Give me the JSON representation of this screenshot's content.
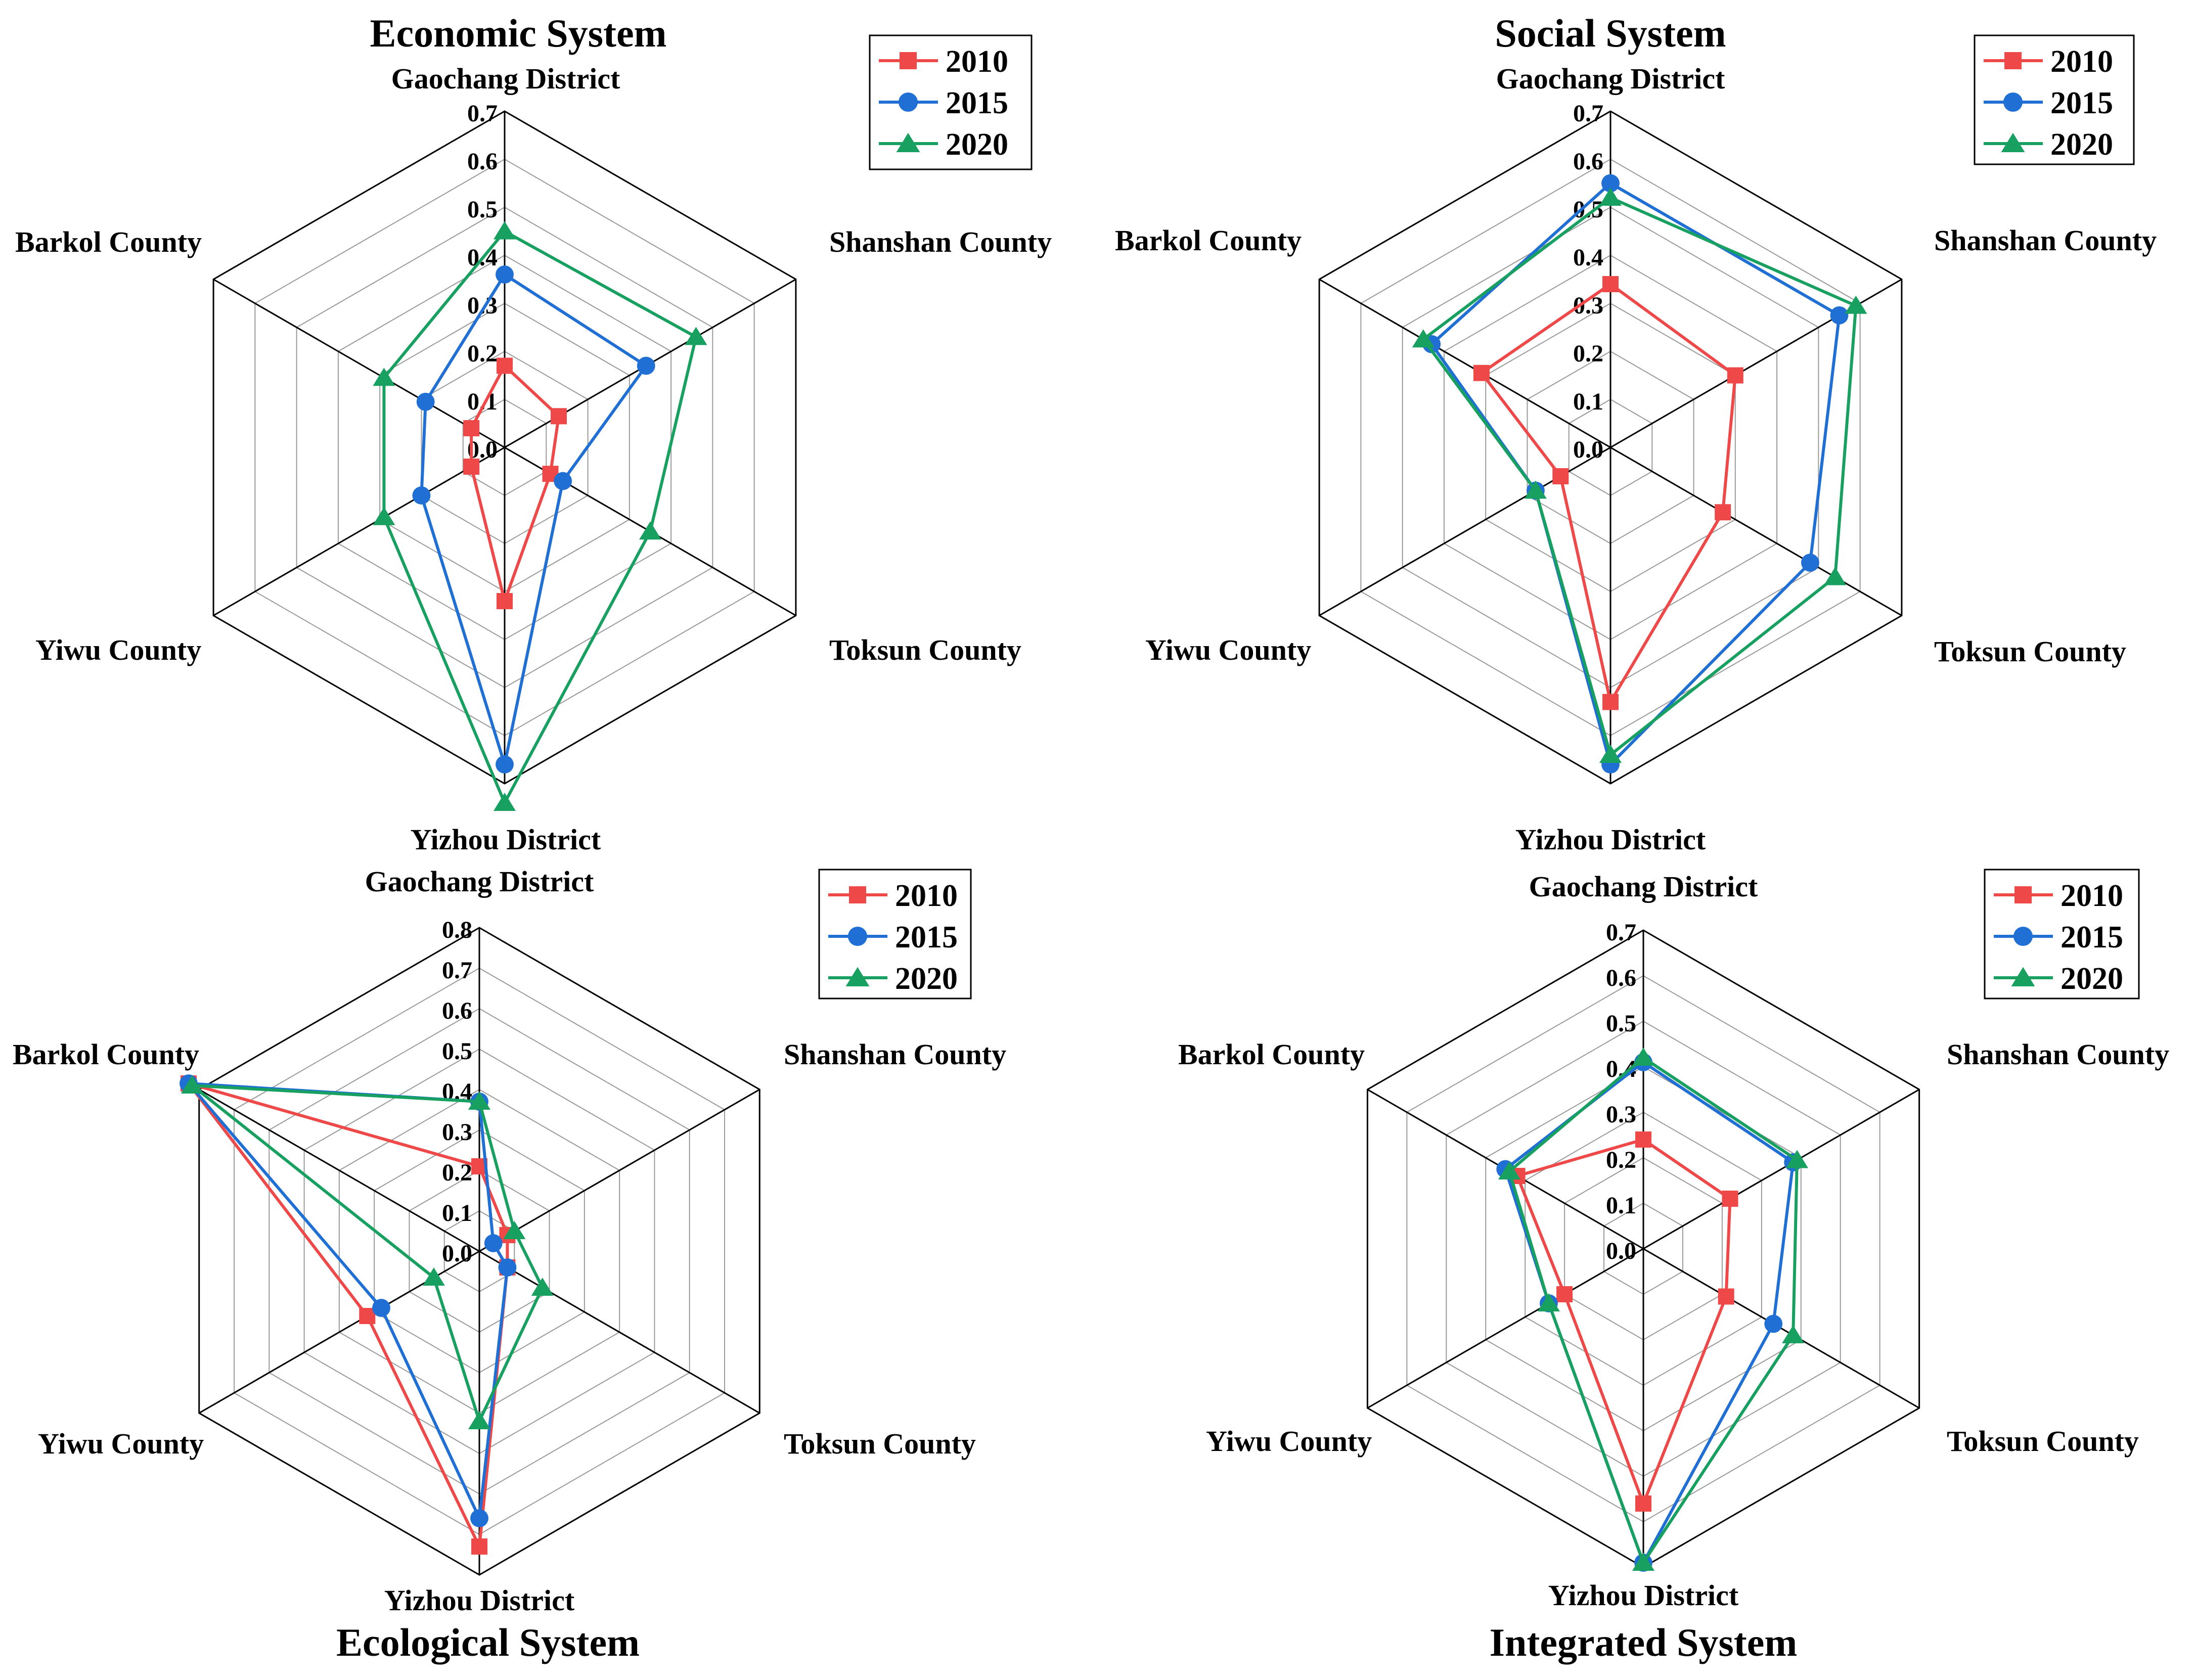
{
  "chart_data": [
    {
      "type": "radar",
      "title": "Economic System",
      "title_position": "top",
      "axes": [
        "Gaochang District",
        "Shanshan County",
        "Toksun County",
        "Yizhou District",
        "Yiwu County",
        "Barkol County"
      ],
      "rticks": [
        "0.0",
        "0.1",
        "0.2",
        "0.3",
        "0.4",
        "0.5",
        "0.6",
        "0.7"
      ],
      "rlim": [
        0,
        0.7
      ],
      "legend_position": "top-right",
      "series": [
        {
          "name": "2010",
          "values": [
            0.17,
            0.13,
            0.11,
            0.32,
            0.08,
            0.08
          ]
        },
        {
          "name": "2015",
          "values": [
            0.36,
            0.34,
            0.14,
            0.66,
            0.2,
            0.19
          ]
        },
        {
          "name": "2020",
          "values": [
            0.45,
            0.46,
            0.35,
            0.74,
            0.29,
            0.29
          ]
        }
      ]
    },
    {
      "type": "radar",
      "title": "Social System",
      "title_position": "top",
      "axes": [
        "Gaochang District",
        "Shanshan County",
        "Toksun County",
        "Yizhou District",
        "Yiwu County",
        "Barkol County"
      ],
      "rticks": [
        "0.0",
        "0.1",
        "0.2",
        "0.3",
        "0.4",
        "0.5",
        "0.6",
        "0.7"
      ],
      "rlim": [
        0,
        0.7
      ],
      "legend_position": "top-right",
      "series": [
        {
          "name": "2010",
          "values": [
            0.34,
            0.3,
            0.27,
            0.53,
            0.12,
            0.31
          ]
        },
        {
          "name": "2015",
          "values": [
            0.55,
            0.55,
            0.48,
            0.66,
            0.18,
            0.43
          ]
        },
        {
          "name": "2020",
          "values": [
            0.52,
            0.59,
            0.54,
            0.64,
            0.18,
            0.45
          ]
        }
      ]
    },
    {
      "type": "radar",
      "title": "Ecological System",
      "title_position": "bottom",
      "axes": [
        "Gaochang District",
        "Shanshan County",
        "Toksun County",
        "Yizhou District",
        "Yiwu County",
        "Barkol County"
      ],
      "rticks": [
        "0.0",
        "0.1",
        "0.2",
        "0.3",
        "0.4",
        "0.5",
        "0.6",
        "0.7",
        "0.8"
      ],
      "rlim": [
        0,
        0.8
      ],
      "legend_position": "top-right",
      "series": [
        {
          "name": "2010",
          "values": [
            0.21,
            0.08,
            0.08,
            0.73,
            0.32,
            0.83
          ]
        },
        {
          "name": "2015",
          "values": [
            0.37,
            0.04,
            0.08,
            0.66,
            0.28,
            0.83
          ]
        },
        {
          "name": "2020",
          "values": [
            0.37,
            0.1,
            0.18,
            0.42,
            0.13,
            0.82
          ]
        }
      ]
    },
    {
      "type": "radar",
      "title": "Integrated System",
      "title_position": "bottom",
      "axes": [
        "Gaochang District",
        "Shanshan County",
        "Toksun County",
        "Yizhou District",
        "Yiwu County",
        "Barkol County"
      ],
      "rticks": [
        "0.0",
        "0.1",
        "0.2",
        "0.3",
        "0.4",
        "0.5",
        "0.6",
        "0.7"
      ],
      "rlim": [
        0,
        0.7
      ],
      "legend_position": "top-right",
      "series": [
        {
          "name": "2010",
          "values": [
            0.24,
            0.22,
            0.21,
            0.56,
            0.2,
            0.32
          ]
        },
        {
          "name": "2015",
          "values": [
            0.41,
            0.38,
            0.33,
            0.69,
            0.24,
            0.35
          ]
        },
        {
          "name": "2020",
          "values": [
            0.42,
            0.39,
            0.38,
            0.69,
            0.24,
            0.34
          ]
        }
      ]
    }
  ],
  "series_colors": {
    "2010": "#ef4848",
    "2015": "#1f6fd4",
    "2020": "#17a060"
  },
  "series_markers": {
    "2010": "square",
    "2015": "circle",
    "2020": "triangle"
  }
}
